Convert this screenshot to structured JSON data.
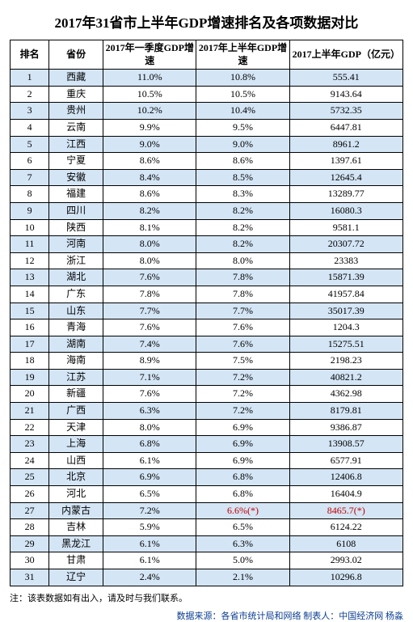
{
  "title": "2017年31省市上半年GDP增速排名及各项数据对比",
  "headers": {
    "rank": "排名",
    "province": "省份",
    "q1_growth": "2017年一季度GDP增速",
    "h1_growth": "2017年上半年GDP增速",
    "h1_gdp": "2017上半年GDP（亿元）"
  },
  "rows": [
    {
      "rank": "1",
      "province": "西藏",
      "q1": "11.0%",
      "h1": "10.8%",
      "gdp": "555.41"
    },
    {
      "rank": "2",
      "province": "重庆",
      "q1": "10.5%",
      "h1": "10.5%",
      "gdp": "9143.64"
    },
    {
      "rank": "3",
      "province": "贵州",
      "q1": "10.2%",
      "h1": "10.4%",
      "gdp": "5732.35"
    },
    {
      "rank": "4",
      "province": "云南",
      "q1": "9.9%",
      "h1": "9.5%",
      "gdp": "6447.81"
    },
    {
      "rank": "5",
      "province": "江西",
      "q1": "9.0%",
      "h1": "9.0%",
      "gdp": "8961.2"
    },
    {
      "rank": "6",
      "province": "宁夏",
      "q1": "8.6%",
      "h1": "8.6%",
      "gdp": "1397.61"
    },
    {
      "rank": "7",
      "province": "安徽",
      "q1": "8.4%",
      "h1": "8.5%",
      "gdp": "12645.4"
    },
    {
      "rank": "8",
      "province": "福建",
      "q1": "8.6%",
      "h1": "8.3%",
      "gdp": "13289.77"
    },
    {
      "rank": "9",
      "province": "四川",
      "q1": "8.2%",
      "h1": "8.2%",
      "gdp": "16080.3"
    },
    {
      "rank": "10",
      "province": "陕西",
      "q1": "8.1%",
      "h1": "8.2%",
      "gdp": "9581.1"
    },
    {
      "rank": "11",
      "province": "河南",
      "q1": "8.0%",
      "h1": "8.2%",
      "gdp": "20307.72"
    },
    {
      "rank": "12",
      "province": "浙江",
      "q1": "8.0%",
      "h1": "8.0%",
      "gdp": "23383"
    },
    {
      "rank": "13",
      "province": "湖北",
      "q1": "7.6%",
      "h1": "7.8%",
      "gdp": "15871.39"
    },
    {
      "rank": "14",
      "province": "广东",
      "q1": "7.8%",
      "h1": "7.8%",
      "gdp": "41957.84"
    },
    {
      "rank": "15",
      "province": "山东",
      "q1": "7.7%",
      "h1": "7.7%",
      "gdp": "35017.39"
    },
    {
      "rank": "16",
      "province": "青海",
      "q1": "7.6%",
      "h1": "7.6%",
      "gdp": "1204.3"
    },
    {
      "rank": "17",
      "province": "湖南",
      "q1": "7.4%",
      "h1": "7.6%",
      "gdp": "15275.51"
    },
    {
      "rank": "18",
      "province": "海南",
      "q1": "8.9%",
      "h1": "7.5%",
      "gdp": "2198.23"
    },
    {
      "rank": "19",
      "province": "江苏",
      "q1": "7.1%",
      "h1": "7.2%",
      "gdp": "40821.2"
    },
    {
      "rank": "20",
      "province": "新疆",
      "q1": "7.6%",
      "h1": "7.2%",
      "gdp": "4362.98"
    },
    {
      "rank": "21",
      "province": "广西",
      "q1": "6.3%",
      "h1": "7.2%",
      "gdp": "8179.81"
    },
    {
      "rank": "22",
      "province": "天津",
      "q1": "8.0%",
      "h1": "6.9%",
      "gdp": "9386.87"
    },
    {
      "rank": "23",
      "province": "上海",
      "q1": "6.8%",
      "h1": "6.9%",
      "gdp": "13908.57"
    },
    {
      "rank": "24",
      "province": "山西",
      "q1": "6.1%",
      "h1": "6.9%",
      "gdp": "6577.91"
    },
    {
      "rank": "25",
      "province": "北京",
      "q1": "6.9%",
      "h1": "6.8%",
      "gdp": "12406.8"
    },
    {
      "rank": "26",
      "province": "河北",
      "q1": "6.5%",
      "h1": "6.8%",
      "gdp": "16404.9"
    },
    {
      "rank": "27",
      "province": "内蒙古",
      "q1": "7.2%",
      "h1": "6.6%(*)",
      "gdp": "8465.7(*)",
      "red": true
    },
    {
      "rank": "28",
      "province": "吉林",
      "q1": "5.9%",
      "h1": "6.5%",
      "gdp": "6124.22"
    },
    {
      "rank": "29",
      "province": "黑龙江",
      "q1": "6.1%",
      "h1": "6.3%",
      "gdp": "6108"
    },
    {
      "rank": "30",
      "province": "甘肃",
      "q1": "6.1%",
      "h1": "5.0%",
      "gdp": "2993.02"
    },
    {
      "rank": "31",
      "province": "辽宁",
      "q1": "2.4%",
      "h1": "2.1%",
      "gdp": "10296.8"
    }
  ],
  "footnote": "注：该表数据如有出入，请及时与我们联系。",
  "source": "数据来源：各省市统计局和网络 制表人：中国经济网 杨淼",
  "colors": {
    "odd_row_bg": "#d4e5f5",
    "even_row_bg": "#ffffff",
    "border": "#000000",
    "red_text": "#c00000",
    "source_text": "#0a3d91"
  }
}
